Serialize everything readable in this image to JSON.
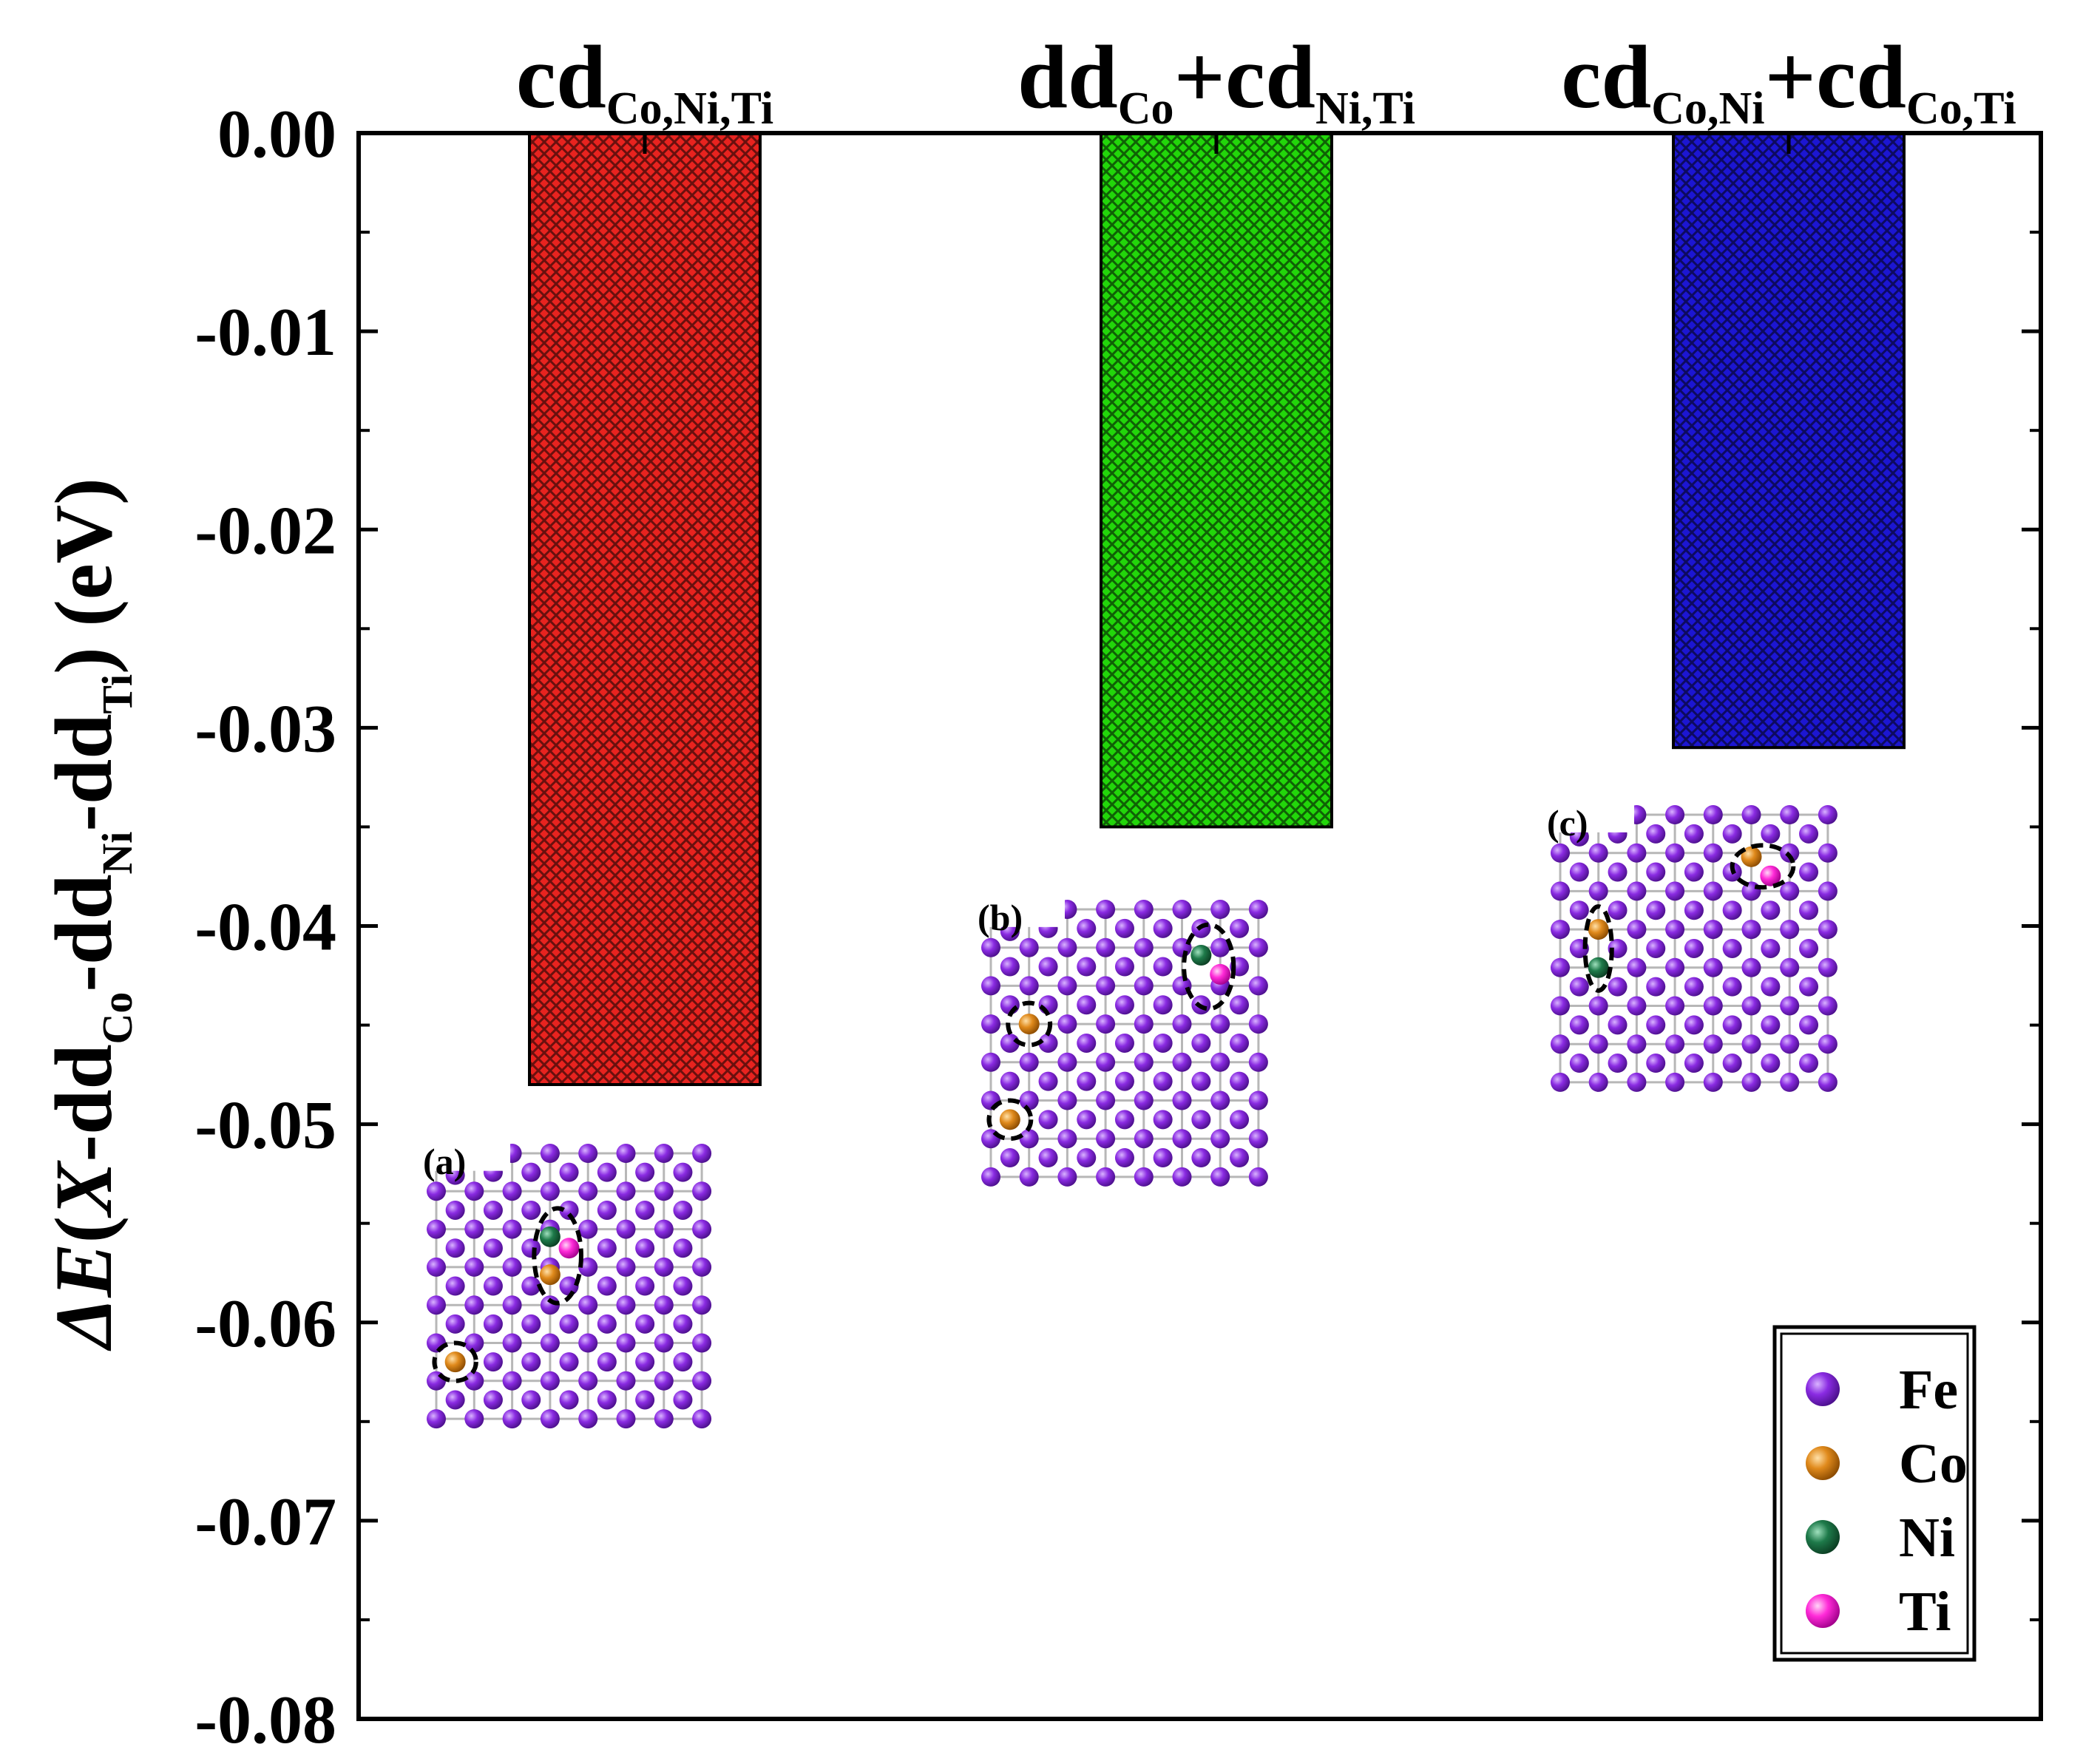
{
  "chart_data": {
    "type": "bar",
    "title": "",
    "categories": [
      {
        "base": "cd",
        "sub": "Co,Ni,Ti",
        "base2": "",
        "sub2": ""
      },
      {
        "base": "dd",
        "sub": "Co",
        "base2": "+cd",
        "sub2": "Ni,Ti"
      },
      {
        "base": "cd",
        "sub": "Co,Ni",
        "base2": "+cd",
        "sub2": "Co,Ti"
      }
    ],
    "values": [
      -0.048,
      -0.035,
      -0.031
    ],
    "bar_colors": [
      "#e8231f",
      "#22d60a",
      "#1c16d2"
    ],
    "ylim": [
      -0.08,
      0.0
    ],
    "yticks": [
      "0.00",
      "-0.01",
      "-0.02",
      "-0.03",
      "-0.04",
      "-0.05",
      "-0.06",
      "-0.07",
      "-0.08"
    ],
    "ylabel": {
      "parts": [
        {
          "text": "ΔE",
          "style": "italic"
        },
        {
          "text": "(",
          "style": "normal"
        },
        {
          "text": "X",
          "style": "italic"
        },
        {
          "text": "-dd",
          "style": "normal"
        },
        {
          "text": "Co",
          "style": "sub"
        },
        {
          "text": "-dd",
          "style": "normal"
        },
        {
          "text": "Ni",
          "style": "sub"
        },
        {
          "text": "-dd",
          "style": "normal"
        },
        {
          "text": "Ti",
          "style": "sub"
        },
        {
          "text": ") (eV)",
          "style": "normal"
        }
      ]
    },
    "grid": false,
    "insets": [
      {
        "label": "(a)",
        "grid": 7
      },
      {
        "label": "(b)",
        "grid": 7
      },
      {
        "label": "(c)",
        "grid": 7
      }
    ],
    "legend": {
      "position": "bottom-right",
      "entries": [
        {
          "name": "Fe",
          "color": "#8a2be2"
        },
        {
          "name": "Co",
          "color": "#e08a1c"
        },
        {
          "name": "Ni",
          "color": "#1e7a4a"
        },
        {
          "name": "Ti",
          "color": "#ff2ad8"
        }
      ]
    }
  }
}
